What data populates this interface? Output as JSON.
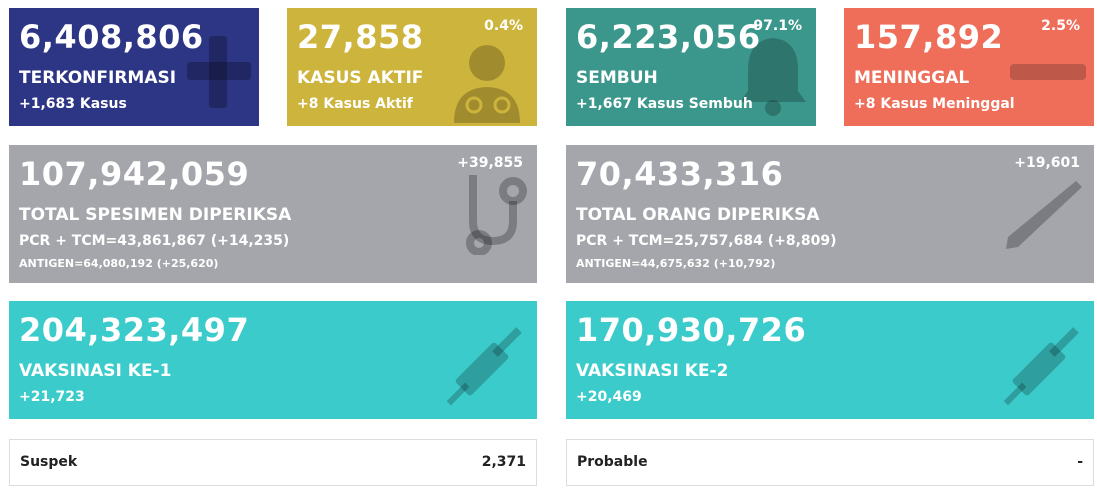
{
  "cards": [
    {
      "value": "6,408,806",
      "label": "TERKONFIRMASI",
      "change": "+1,683 Kasus"
    },
    {
      "value": "27,858",
      "percent": "0.4%",
      "label": "KASUS AKTIF",
      "change": "+8 Kasus Aktif"
    },
    {
      "value": "6,223,056",
      "percent": "97.1%",
      "label": "SEMBUH",
      "change": "+1,667 Kasus Sembuh"
    },
    {
      "value": "157,892",
      "percent": "2.5%",
      "label": "MENINGGAL",
      "change": "+8 Kasus Meninggal"
    }
  ],
  "tests": [
    {
      "value": "107,942,059",
      "change": "+39,855",
      "label": "TOTAL SPESIMEN DIPERIKSA",
      "pcr": "PCR + TCM=43,861,867 (+14,235)",
      "antigen": "ANTIGEN=64,080,192 (+25,620)"
    },
    {
      "value": "70,433,316",
      "change": "+19,601",
      "label": "TOTAL ORANG DIPERIKSA",
      "pcr": "PCR + TCM=25,757,684 (+8,809)",
      "antigen": "ANTIGEN=44,675,632 (+10,792)"
    }
  ],
  "vaccinations": [
    {
      "value": "204,323,497",
      "label": "VAKSINASI KE-1",
      "change": "+21,723"
    },
    {
      "value": "170,930,726",
      "label": "VAKSINASI KE-2",
      "change": "+20,469"
    }
  ],
  "others": [
    {
      "label": "Suspek",
      "value": "2,371"
    },
    {
      "label": "Probable",
      "value": "-"
    }
  ]
}
